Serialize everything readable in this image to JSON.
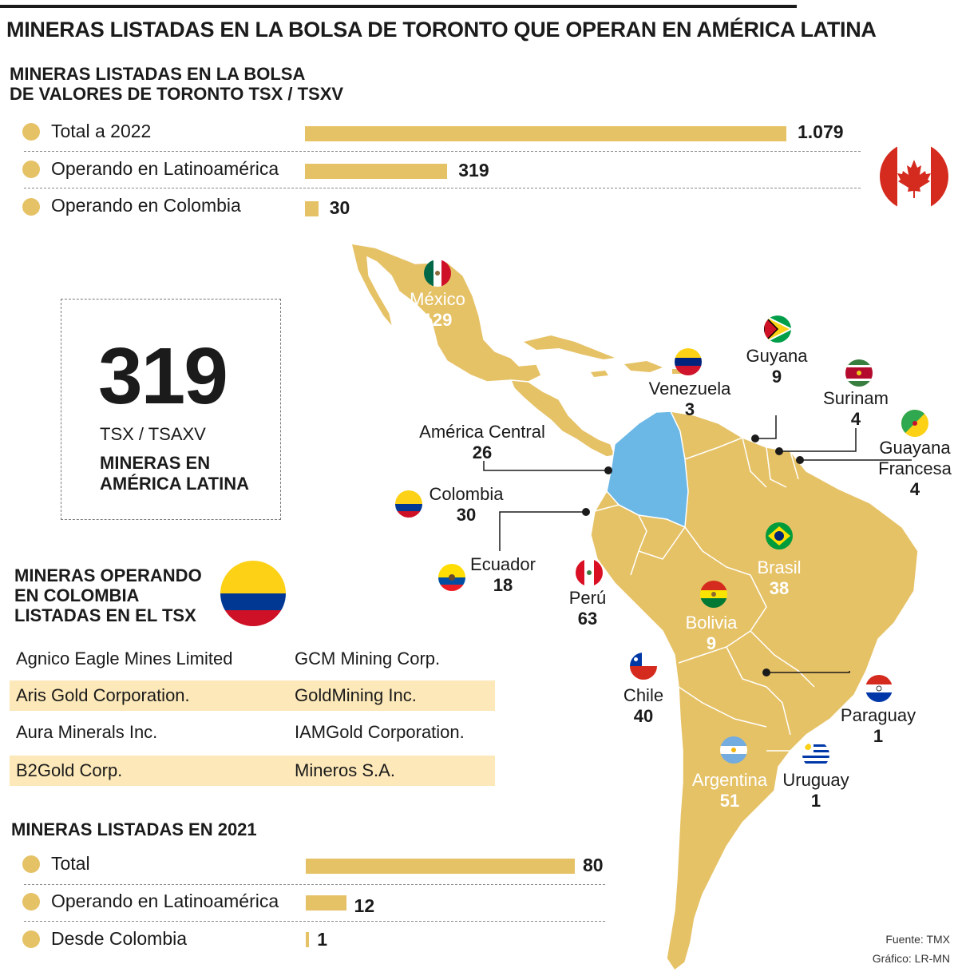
{
  "title": "MINERAS LISTADAS EN LA BOLSA DE TORONTO QUE OPERAN EN AMÉRICA LATINA",
  "tsx_section": {
    "heading_line1": "MINERAS LISTADAS EN LA BOLSA",
    "heading_line2": "DE VALORES DE TORONTO TSX / TSXV",
    "rows": [
      {
        "label": "Total a 2022",
        "value": 1079,
        "value_text": "1.079"
      },
      {
        "label": "Operando en Latinoamérica",
        "value": 319,
        "value_text": "319"
      },
      {
        "label": "Operando en Colombia",
        "value": 30,
        "value_text": "30"
      }
    ],
    "flag_icon": "canada-flag-icon"
  },
  "summary": {
    "number": "319",
    "subtitle": "TSX / TSAXV",
    "tag_line1": "MINERAS EN",
    "tag_line2": "AMÉRICA LATINA"
  },
  "colombia_section": {
    "heading_line1": "MINERAS OPERANDO",
    "heading_line2": "EN COLOMBIA",
    "heading_line3": "LISTADAS EN EL TSX",
    "flag_icon": "colombia-flag-icon",
    "companies": [
      [
        "Agnico Eagle Mines Limited",
        "GCM Mining Corp."
      ],
      [
        "Aris Gold Corporation.",
        "GoldMining Inc."
      ],
      [
        "Aura Minerals Inc.",
        "IAMGold Corporation."
      ],
      [
        "B2Gold Corp.",
        "Mineros S.A."
      ]
    ]
  },
  "y2021_section": {
    "heading": "MINERAS LISTADAS EN 2021",
    "rows": [
      {
        "label": "Total",
        "value": 80,
        "value_text": "80"
      },
      {
        "label": "Operando en Latinoamérica",
        "value": 12,
        "value_text": "12"
      },
      {
        "label": "Desde Colombia",
        "value": 1,
        "value_text": "1"
      }
    ]
  },
  "map": {
    "land_color": "#e6c266",
    "highlight_color": "#6bb8e6",
    "countries": {
      "mexico": {
        "name": "México",
        "count": "129"
      },
      "venezuela": {
        "name": "Venezuela",
        "count": "3"
      },
      "guyana": {
        "name": "Guyana",
        "count": "9"
      },
      "surinam": {
        "name": "Surinam",
        "count": "4"
      },
      "guayana_fr_line1": {
        "name": "Guayana"
      },
      "guayana_fr": {
        "name": "Francesa",
        "count": "4"
      },
      "central": {
        "name": "América Central",
        "count": "26"
      },
      "colombia": {
        "name": "Colombia",
        "count": "30"
      },
      "ecuador": {
        "name": "Ecuador",
        "count": "18"
      },
      "peru": {
        "name": "Perú",
        "count": "63"
      },
      "brasil": {
        "name": "Brasil",
        "count": "38"
      },
      "bolivia": {
        "name": "Bolivia",
        "count": "9"
      },
      "chile": {
        "name": "Chile",
        "count": "40"
      },
      "paraguay": {
        "name": "Paraguay",
        "count": "1"
      },
      "argentina": {
        "name": "Argentina",
        "count": "51"
      },
      "uruguay": {
        "name": "Uruguay",
        "count": "1"
      }
    }
  },
  "footer": {
    "source": "Fuente: TMX",
    "credit": "Gráfico: LR-MN"
  }
}
